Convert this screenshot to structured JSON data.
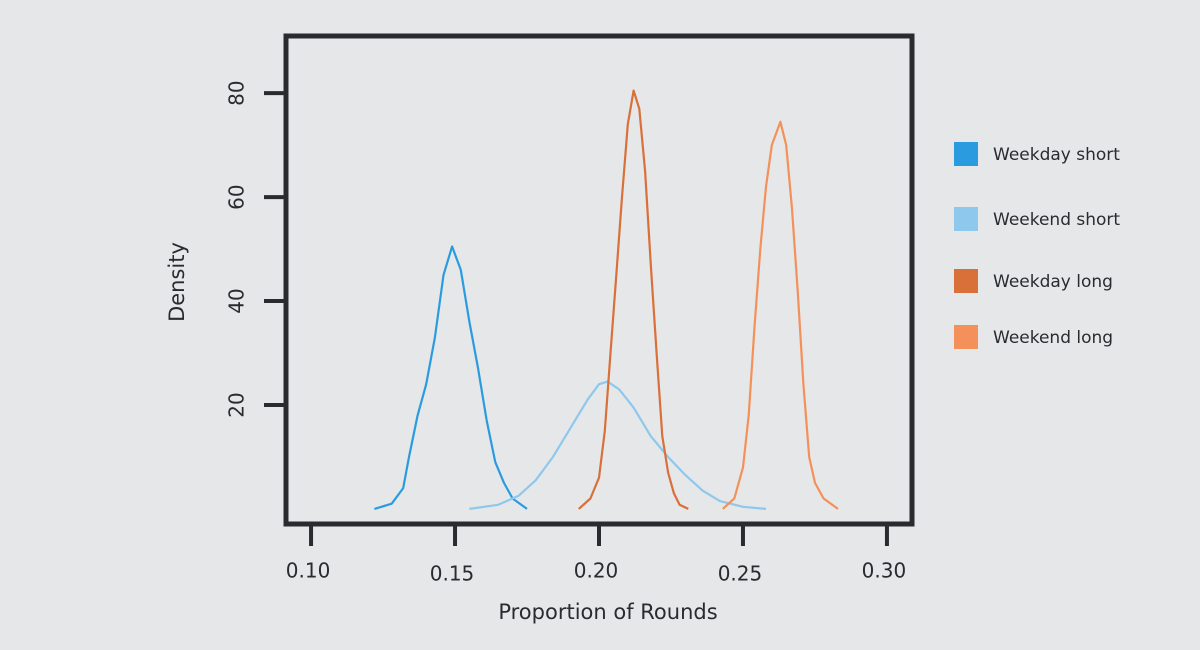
{
  "chart_data": {
    "type": "line",
    "x_label": "Proportion of Rounds",
    "y_label": "Density",
    "xlim": [
      0.0913,
      0.3087
    ],
    "ylim": [
      -2.9,
      91
    ],
    "xticks": [
      {
        "value": 0.1,
        "label": "0.10"
      },
      {
        "value": 0.15,
        "label": "0.15"
      },
      {
        "value": 0.2,
        "label": "0.20"
      },
      {
        "value": 0.25,
        "label": "0.25"
      },
      {
        "value": 0.3,
        "label": "0.30"
      }
    ],
    "yticks": [
      20,
      40,
      60,
      80
    ],
    "legend": "right",
    "series": [
      {
        "name": "Weekday short",
        "color": "#2b9be0",
        "x": [
          0.122,
          0.128,
          0.132,
          0.134,
          0.137,
          0.14,
          0.143,
          0.146,
          0.149,
          0.152,
          0.155,
          0.158,
          0.161,
          0.164,
          0.167,
          0.17,
          0.175
        ],
        "values": [
          0,
          1,
          4,
          10,
          18,
          24,
          33,
          45,
          50.5,
          46,
          36,
          27,
          17,
          9,
          5,
          2,
          0
        ]
      },
      {
        "name": "Weekend short",
        "color": "#8ec8ec",
        "x": [
          0.155,
          0.165,
          0.172,
          0.178,
          0.184,
          0.19,
          0.196,
          0.2,
          0.203,
          0.207,
          0.212,
          0.218,
          0.224,
          0.23,
          0.236,
          0.242,
          0.25,
          0.258
        ],
        "values": [
          0,
          0.8,
          2.5,
          5.5,
          10,
          15.5,
          21,
          24,
          24.5,
          23,
          19.5,
          14,
          10,
          6.5,
          3.5,
          1.5,
          0.4,
          0
        ]
      },
      {
        "name": "Weekday long",
        "color": "#d9703a",
        "x": [
          0.193,
          0.197,
          0.2,
          0.202,
          0.204,
          0.206,
          0.208,
          0.21,
          0.212,
          0.214,
          0.216,
          0.218,
          0.22,
          0.222,
          0.224,
          0.226,
          0.228,
          0.231
        ],
        "values": [
          0,
          2,
          6,
          15,
          30,
          45,
          60,
          74,
          80.5,
          77,
          65,
          47,
          30,
          14,
          7,
          3,
          0.8,
          0
        ]
      },
      {
        "name": "Weekend long",
        "color": "#f4915a",
        "x": [
          0.243,
          0.247,
          0.25,
          0.252,
          0.254,
          0.256,
          0.258,
          0.26,
          0.263,
          0.265,
          0.267,
          0.269,
          0.271,
          0.273,
          0.275,
          0.278,
          0.283
        ],
        "values": [
          0,
          2,
          8,
          18,
          35,
          50,
          62,
          70,
          74.5,
          70,
          58,
          42,
          24,
          10,
          5,
          2,
          0
        ]
      }
    ]
  }
}
